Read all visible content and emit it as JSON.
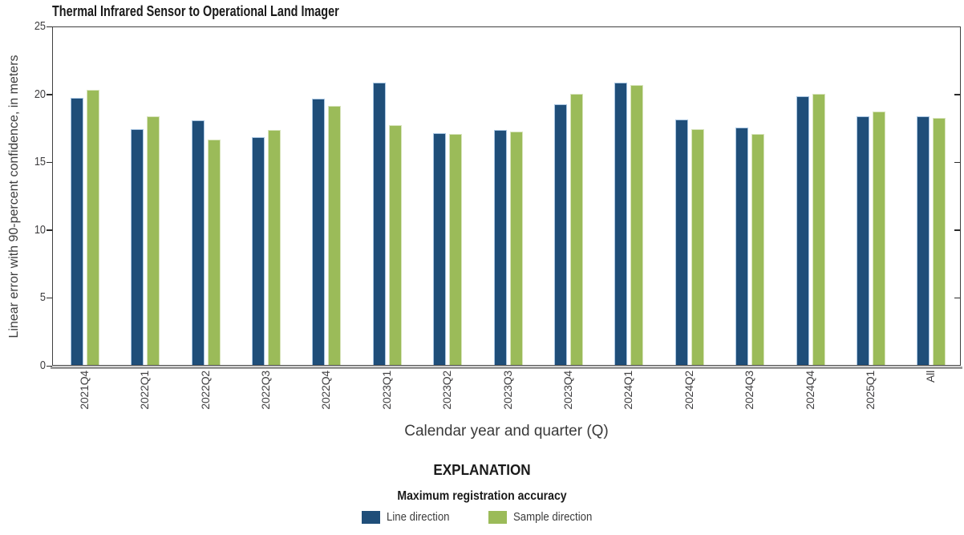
{
  "chart_data": {
    "type": "bar",
    "title": "Thermal Infrared Sensor to Operational Land Imager",
    "xlabel": "Calendar year and quarter (Q)",
    "ylabel": "Linear error with 90-percent confidence, in meters",
    "ylim": [
      0,
      25
    ],
    "yticks": [
      0,
      5,
      10,
      15,
      20,
      25
    ],
    "grid": false,
    "legend_position": "bottom",
    "categories": [
      "2021Q4",
      "2022Q1",
      "2022Q2",
      "2022Q3",
      "2022Q4",
      "2023Q1",
      "2023Q2",
      "2023Q3",
      "2023Q4",
      "2024Q1",
      "2024Q2",
      "2024Q3",
      "2024Q4",
      "2025Q1",
      "All"
    ],
    "series": [
      {
        "name": "Line direction",
        "color": "#1F4E79",
        "edge_color": "#A9C6E2",
        "values": [
          19.7,
          17.4,
          18.0,
          16.8,
          19.6,
          20.8,
          17.1,
          17.3,
          19.2,
          20.8,
          18.1,
          17.5,
          19.8,
          18.3,
          18.3
        ]
      },
      {
        "name": "Sample direction",
        "color": "#9BBB59",
        "edge_color": "#D8E4BC",
        "values": [
          20.3,
          18.3,
          16.6,
          17.3,
          19.1,
          17.7,
          17.0,
          17.2,
          20.0,
          20.6,
          17.4,
          17.0,
          20.0,
          18.7,
          18.2
        ]
      }
    ]
  },
  "explanation": {
    "heading": "EXPLANATION",
    "subheading": "Maximum registration accuracy",
    "items": [
      {
        "label": "Line direction",
        "color": "#1F4E79"
      },
      {
        "label": "Sample direction",
        "color": "#9BBB59"
      }
    ]
  }
}
